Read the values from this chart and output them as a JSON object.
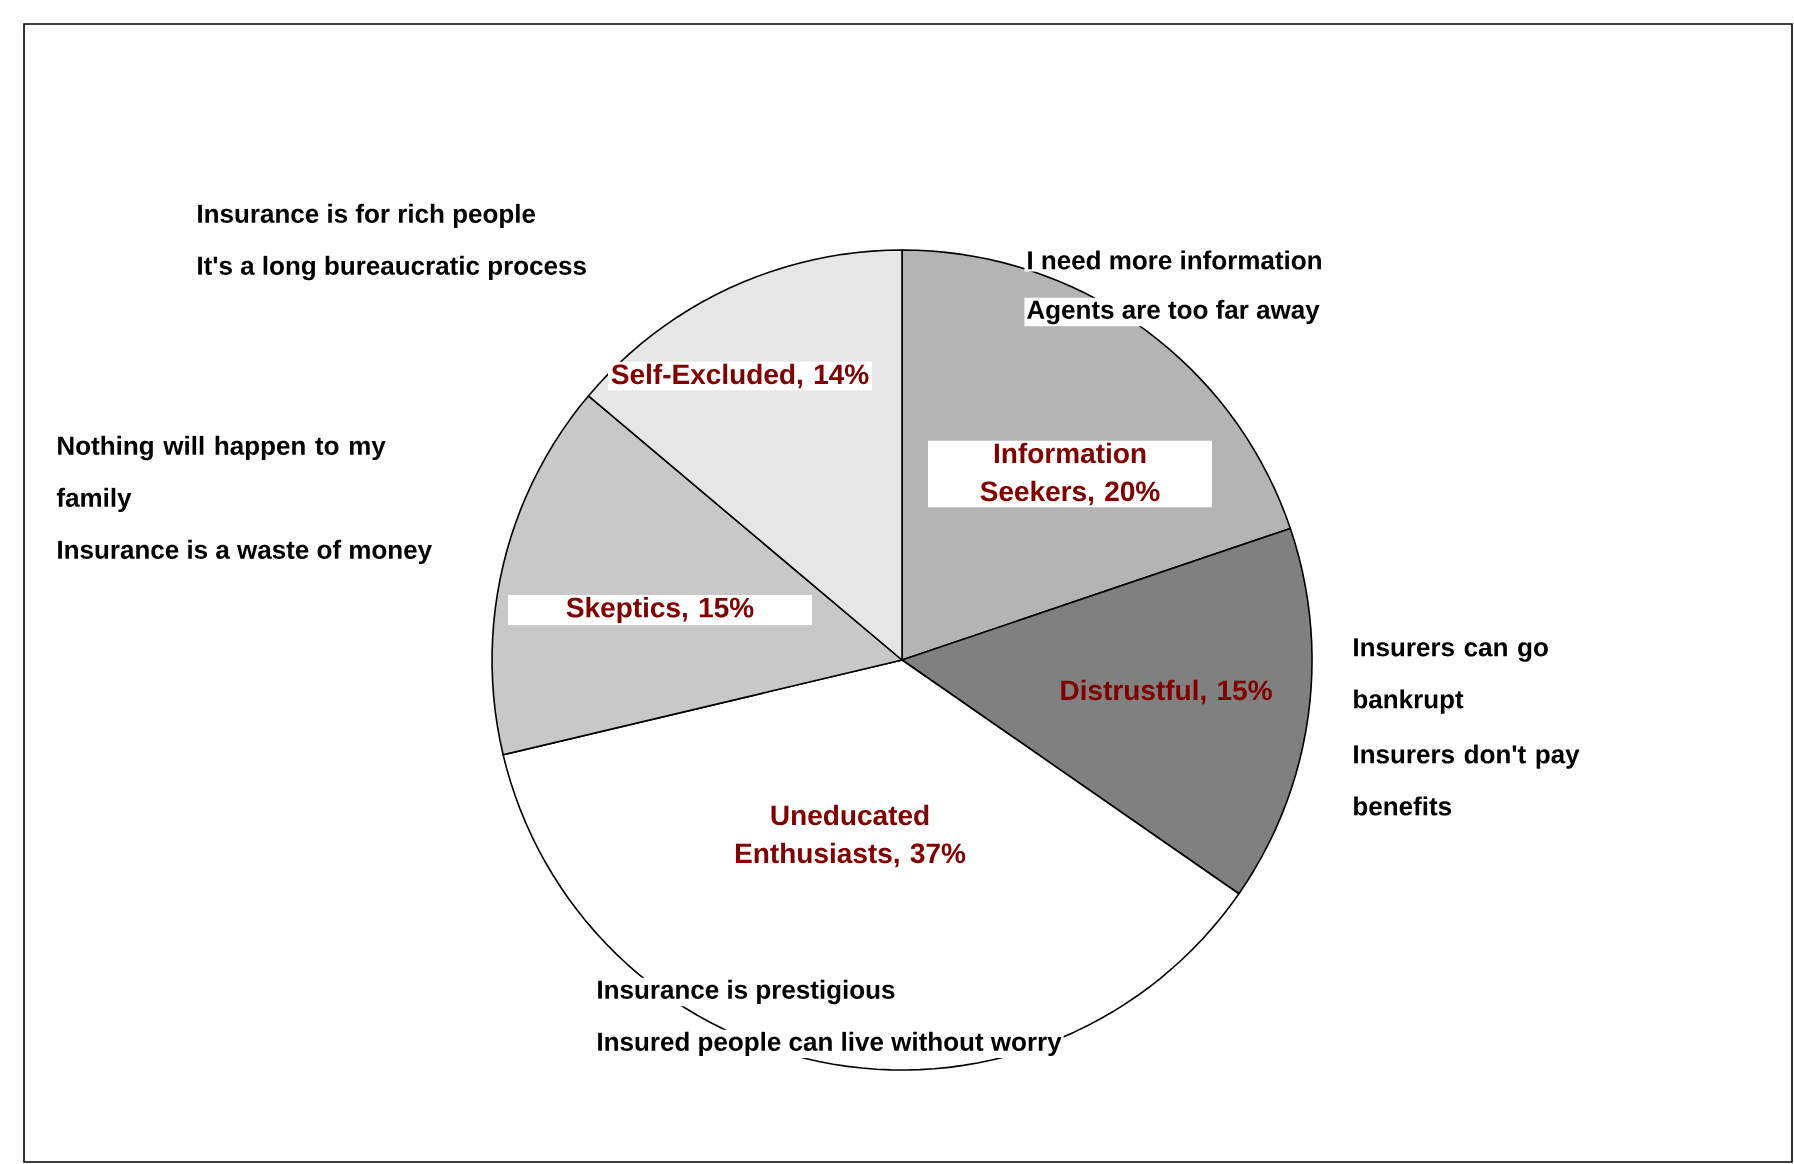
{
  "chart_data": {
    "type": "pie",
    "categories": [
      "Information Seekers, 20%",
      "Distrustful, 15%",
      "Uneducated Enthusiasts, 37%",
      "Skeptics, 15%",
      "Self-Excluded, 14%"
    ],
    "values": [
      20,
      15,
      37,
      15,
      14
    ],
    "colors": [
      "#b4b4b4",
      "#808080",
      "#ffffff",
      "#c8c8c8",
      "#e6e6e6"
    ],
    "annotations": [
      "Insurance is for rich people",
      "It's a long bureaucratic process",
      "I need more information",
      "Agents are too far away",
      "Nothing will happen to my family",
      "Insurance is a waste of money",
      "Insurers can go bankrupt",
      "Insurers don't pay benefits",
      "Insurance is prestigious",
      "Insured people can live without worry"
    ]
  }
}
